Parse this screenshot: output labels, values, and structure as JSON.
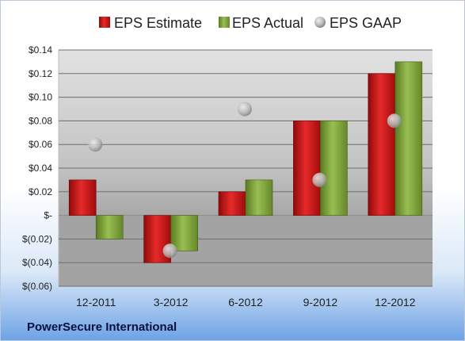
{
  "chart_data": {
    "type": "bar",
    "categories": [
      "12-2011",
      "3-2012",
      "6-2012",
      "9-2012",
      "12-2012"
    ],
    "series": [
      {
        "name": "EPS Estimate",
        "type": "bar",
        "color": "#d01414",
        "values": [
          0.03,
          -0.04,
          0.02,
          0.08,
          0.12
        ]
      },
      {
        "name": "EPS Actual",
        "type": "bar",
        "color": "#7fa03a",
        "values": [
          -0.02,
          -0.03,
          0.03,
          0.08,
          0.13
        ]
      },
      {
        "name": "EPS GAAP",
        "type": "scatter",
        "color": "#b4b4b4",
        "values": [
          0.06,
          -0.03,
          0.09,
          0.03,
          0.08
        ]
      }
    ],
    "y_ticks": [
      0.14,
      0.12,
      0.1,
      0.08,
      0.06,
      0.04,
      0.02,
      0,
      -0.02,
      -0.04,
      -0.06
    ],
    "y_tick_labels": [
      "$0.14",
      "$0.12",
      "$0.10",
      "$0.08",
      "$0.06",
      "$0.04",
      "$0.02",
      "$-",
      "$(0.02)",
      "$(0.04)",
      "$(0.06)"
    ],
    "ylim": [
      -0.06,
      0.14
    ],
    "legend_position": "top",
    "grid": true
  },
  "footer": {
    "company": "PowerSecure International"
  },
  "colors": {
    "background_top": "#ffffff",
    "background_bottom": "#6ea3e6",
    "plot_positive": "#c6c6c6",
    "plot_negative": "#a2a2a2"
  }
}
